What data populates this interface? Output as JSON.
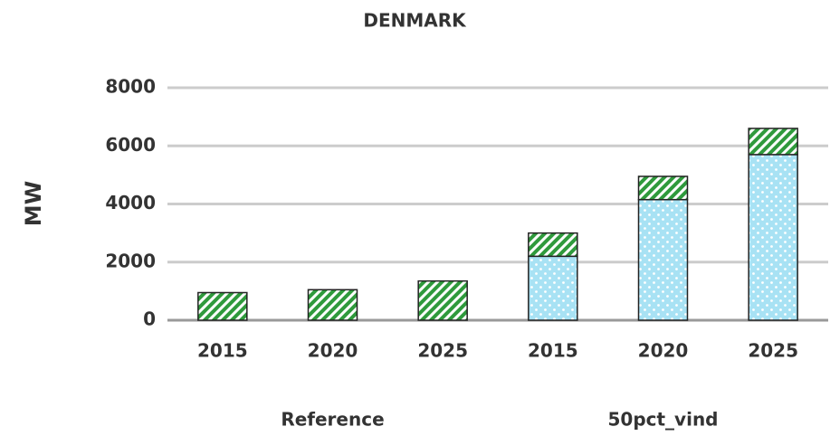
{
  "chart_data": {
    "type": "bar",
    "stacked": true,
    "title": "DENMARK",
    "y_label": "MW",
    "categories": [
      "2015",
      "2020",
      "2025",
      "2015",
      "2020",
      "2025"
    ],
    "groups": [
      "Reference",
      "50pct_vind"
    ],
    "series": [
      {
        "color": "#a8e2f4",
        "pattern": "dots",
        "values": [
          0,
          0,
          0,
          2200,
          4150,
          5700
        ]
      },
      {
        "color": "#2f9a3c",
        "pattern": "hatch",
        "values": [
          950,
          1050,
          1350,
          800,
          800,
          900
        ]
      }
    ],
    "ylim": [
      0,
      8000
    ],
    "yticks": [
      0,
      2000,
      4000,
      6000,
      8000
    ],
    "grid": true
  }
}
